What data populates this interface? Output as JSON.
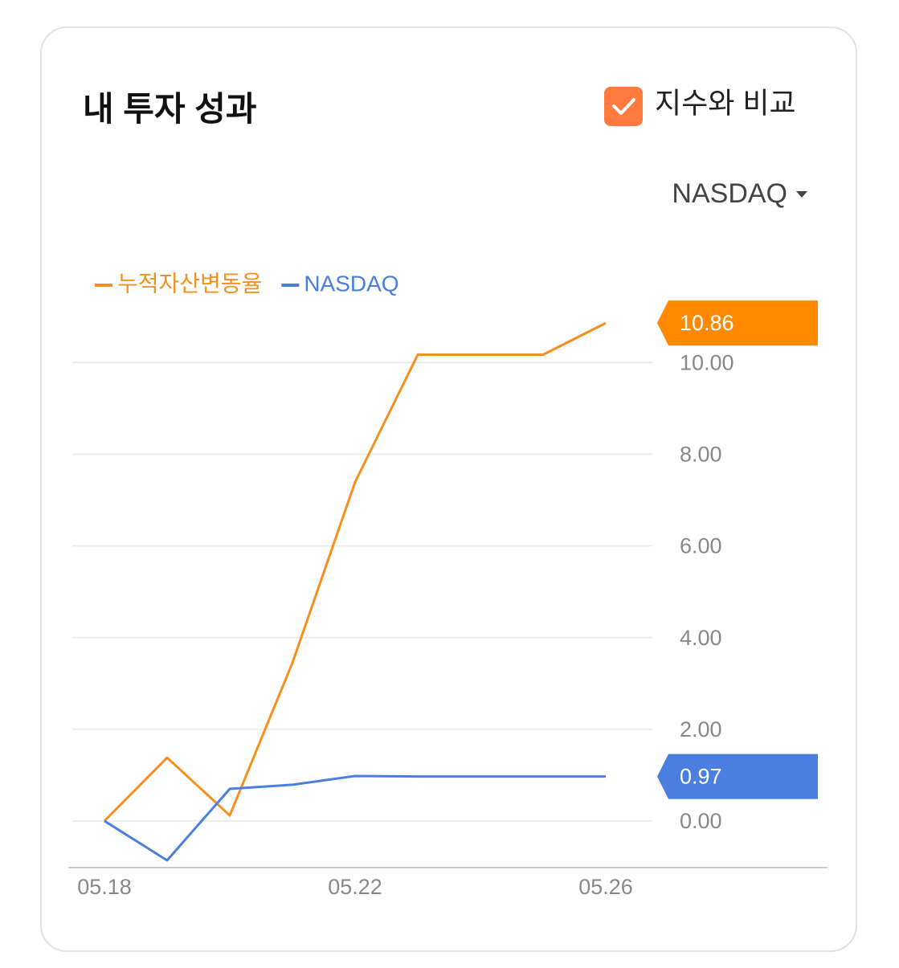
{
  "header": {
    "title": "내 투자 성과",
    "compare_label": "지수와 비교",
    "compare_checked": true
  },
  "index_select": "NASDAQ",
  "chart_data": {
    "type": "line",
    "categories": [
      "05.18",
      null,
      null,
      null,
      "05.22",
      null,
      null,
      null,
      "05.26"
    ],
    "series": [
      {
        "name": "누적자산변동율",
        "color": "#f5901e",
        "badge_color": "#ff8a00",
        "values": [
          0,
          1.38,
          0.12,
          3.45,
          7.39,
          10.17,
          10.17,
          10.17,
          10.86
        ]
      },
      {
        "name": "NASDAQ",
        "color": "#4a7fe0",
        "badge_color": "#4a7fe0",
        "values": [
          0,
          -0.86,
          0.7,
          0.79,
          0.98,
          0.97,
          0.97,
          0.97,
          0.97
        ]
      }
    ],
    "ylim": [
      -1,
      11.3
    ],
    "yticks": [
      {
        "value": 0,
        "label": "0.00"
      },
      {
        "value": 2,
        "label": "2.00"
      },
      {
        "value": 4,
        "label": "4.00"
      },
      {
        "value": 6,
        "label": "6.00"
      },
      {
        "value": 8,
        "label": "8.00"
      },
      {
        "value": 10,
        "label": "10.00"
      }
    ],
    "grid": true,
    "legend": "top-left"
  }
}
